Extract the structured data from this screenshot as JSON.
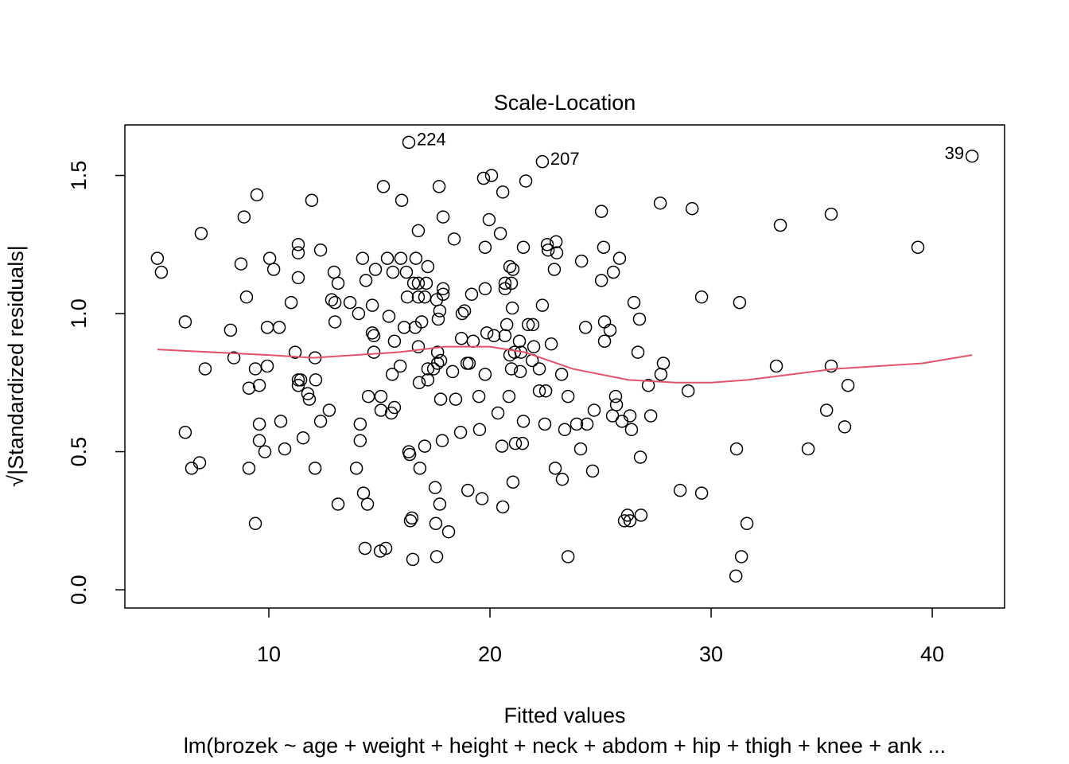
{
  "chart_data": {
    "type": "scatter",
    "title": "Scale-Location",
    "xlabel": "Fitted values",
    "ylabel": "√|Standardized residuals|",
    "subtitle": "lm(brozek ~ age + weight + height + neck + abdom + hip + thigh + knee + ank ...",
    "xlim": [
      3.49,
      43.27
    ],
    "ylim": [
      -0.066,
      1.683
    ],
    "xticks": [
      10,
      20,
      30,
      40
    ],
    "yticks": [
      {
        "value": 0,
        "label": "0.0"
      },
      0.5,
      {
        "value": 1,
        "label": "1.0"
      },
      1.5
    ],
    "x": [
      4.96,
      5.14,
      6.94,
      6.22,
      6.22,
      6.51,
      6.87,
      7.12,
      8.27,
      8.42,
      8.74,
      8.88,
      8.99,
      9.1,
      9.1,
      9.39,
      9.39,
      9.46,
      9.57,
      9.57,
      9.57,
      9.82,
      9.93,
      9.93,
      10.04,
      10.22,
      10.47,
      10.54,
      10.72,
      11.01,
      11.19,
      11.33,
      11.33,
      11.33,
      11.33,
      11.33,
      11.44,
      11.55,
      11.76,
      11.83,
      11.94,
      12.09,
      12.12,
      12.09,
      12.34,
      12.34,
      12.73,
      12.84,
      12.95,
      12.99,
      12.99,
      13.13,
      13.13,
      13.67,
      13.96,
      14.06,
      14.13,
      14.13,
      14.24,
      14.28,
      14.39,
      14.35,
      14.46,
      14.5,
      14.68,
      14.68,
      14.75,
      14.75,
      14.82,
      15.04,
      15.07,
      15.07,
      15.18,
      15.29,
      15.36,
      15.43,
      15.54,
      15.58,
      15.61,
      15.68,
      15.68,
      15.94,
      15.97,
      16.01,
      16.12,
      16.22,
      16.26,
      16.33,
      16.37,
      16.33,
      16.4,
      16.47,
      16.51,
      16.55,
      16.62,
      16.65,
      16.76,
      16.76,
      16.76,
      16.76,
      16.8,
      16.83,
      16.91,
      17.05,
      17.05,
      17.12,
      17.19,
      17.19,
      17.19,
      17.45,
      17.52,
      17.55,
      17.59,
      17.59,
      17.63,
      17.63,
      17.66,
      17.7,
      17.73,
      17.73,
      17.77,
      17.77,
      17.84,
      17.88,
      17.88,
      17.88,
      18.13,
      18.31,
      18.38,
      18.45,
      18.67,
      18.71,
      18.74,
      18.85,
      18.96,
      19.0,
      19.06,
      19.17,
      19.24,
      19.5,
      19.53,
      19.64,
      19.71,
      19.78,
      19.78,
      19.78,
      19.86,
      19.96,
      20.07,
      20.18,
      20.36,
      20.47,
      20.54,
      20.58,
      20.58,
      20.68,
      20.68,
      20.68,
      20.76,
      20.86,
      20.9,
      20.97,
      20.9,
      20.97,
      21.01,
      21.04,
      21.04,
      21.11,
      21.15,
      21.33,
      21.37,
      21.4,
      21.47,
      21.51,
      21.51,
      21.62,
      21.73,
      21.91,
      21.94,
      21.98,
      22.23,
      22.23,
      22.37,
      22.37,
      22.48,
      22.52,
      22.59,
      22.63,
      22.77,
      22.91,
      22.95,
      22.99,
      23.02,
      23.24,
      23.27,
      23.38,
      23.53,
      23.53,
      23.92,
      24.1,
      24.14,
      24.32,
      24.39,
      24.64,
      24.71,
      25.04,
      25.04,
      25.14,
      25.18,
      25.18,
      25.43,
      25.54,
      25.58,
      25.68,
      25.72,
      25.86,
      25.97,
      26.08,
      26.22,
      26.33,
      26.33,
      26.4,
      26.51,
      26.69,
      26.76,
      26.8,
      26.83,
      27.16,
      27.27,
      27.7,
      27.73,
      27.84,
      28.6,
      28.96,
      29.14,
      29.57,
      29.57,
      31.12,
      31.15,
      31.29,
      31.37,
      31.62,
      32.95,
      33.13,
      34.39,
      35.22,
      35.43,
      35.43,
      36.04,
      36.19,
      39.35,
      41.8
    ],
    "y": [
      1.2,
      1.15,
      1.29,
      0.97,
      0.57,
      0.44,
      0.46,
      0.8,
      0.94,
      0.84,
      1.18,
      1.35,
      1.06,
      0.73,
      0.44,
      0.24,
      0.8,
      1.43,
      0.74,
      0.6,
      0.54,
      0.5,
      0.81,
      0.95,
      1.2,
      1.16,
      0.95,
      0.61,
      0.51,
      1.04,
      0.86,
      1.25,
      1.22,
      1.13,
      0.76,
      0.74,
      0.76,
      0.55,
      0.71,
      0.69,
      1.41,
      0.84,
      0.76,
      0.44,
      1.23,
      0.61,
      0.65,
      1.05,
      1.15,
      0.97,
      1.04,
      1.11,
      0.31,
      1.04,
      0.44,
      1.0,
      0.6,
      0.54,
      1.2,
      0.35,
      1.12,
      0.15,
      0.31,
      0.7,
      1.03,
      0.93,
      0.86,
      0.92,
      1.16,
      0.14,
      0.7,
      0.65,
      1.46,
      0.15,
      1.2,
      0.99,
      0.64,
      0.78,
      1.15,
      0.9,
      0.66,
      0.81,
      1.2,
      1.41,
      0.95,
      1.15,
      1.06,
      0.5,
      0.49,
      1.62,
      0.25,
      0.26,
      0.11,
      1.11,
      0.95,
      1.2,
      1.3,
      1.11,
      0.88,
      1.06,
      0.75,
      0.44,
      0.97,
      1.06,
      0.52,
      1.11,
      1.17,
      0.8,
      0.76,
      0.8,
      0.37,
      0.24,
      1.05,
      0.12,
      0.86,
      0.82,
      0.98,
      1.46,
      0.31,
      1.01,
      0.83,
      0.69,
      0.54,
      1.35,
      1.09,
      1.07,
      0.21,
      0.79,
      1.27,
      0.69,
      0.57,
      0.91,
      1.0,
      1.01,
      0.82,
      0.36,
      0.82,
      1.07,
      0.9,
      0.7,
      0.58,
      0.33,
      1.49,
      0.78,
      1.24,
      1.09,
      0.93,
      1.34,
      1.5,
      0.92,
      0.64,
      1.29,
      0.52,
      1.44,
      0.3,
      0.92,
      1.11,
      1.09,
      0.96,
      0.7,
      0.85,
      0.8,
      1.17,
      1.11,
      1.02,
      1.16,
      0.39,
      0.86,
      0.53,
      0.9,
      0.79,
      0.86,
      0.53,
      0.61,
      1.24,
      1.48,
      0.96,
      0.83,
      0.96,
      0.88,
      0.8,
      0.72,
      1.03,
      1.55,
      0.6,
      0.72,
      1.25,
      1.23,
      0.89,
      1.16,
      0.44,
      1.26,
      1.22,
      0.78,
      0.4,
      0.58,
      0.7,
      0.12,
      0.6,
      0.51,
      1.19,
      0.95,
      0.6,
      0.43,
      0.65,
      1.37,
      1.12,
      1.24,
      0.97,
      0.9,
      0.94,
      0.63,
      1.15,
      0.7,
      0.67,
      1.2,
      0.61,
      0.25,
      0.27,
      0.25,
      0.63,
      0.58,
      1.04,
      0.86,
      0.98,
      0.48,
      0.27,
      0.74,
      0.63,
      1.4,
      0.78,
      0.82,
      0.36,
      0.72,
      1.38,
      0.35,
      1.06,
      0.05,
      0.51,
      1.04,
      0.12,
      0.24,
      0.81,
      1.32,
      0.51,
      0.65,
      1.36,
      0.81,
      0.59,
      0.74,
      1.24,
      1.57
    ],
    "color": "#000000",
    "smooth": {
      "color": "#df536b",
      "x": [
        4.96,
        10,
        11.98,
        15.83,
        17.99,
        20,
        21.58,
        23.74,
        26.26,
        28.42,
        30,
        31.65,
        35.61,
        39.57,
        41.8
      ],
      "y": [
        0.87,
        0.85,
        0.84,
        0.86,
        0.88,
        0.88,
        0.86,
        0.8,
        0.76,
        0.75,
        0.75,
        0.76,
        0.8,
        0.82,
        0.85
      ]
    },
    "annotations": [
      {
        "text": "224",
        "x": 16.33,
        "y": 1.62
      },
      {
        "text": "207",
        "x": 22.37,
        "y": 1.55
      },
      {
        "text": "39",
        "x": 41.8,
        "y": 1.57
      }
    ]
  }
}
